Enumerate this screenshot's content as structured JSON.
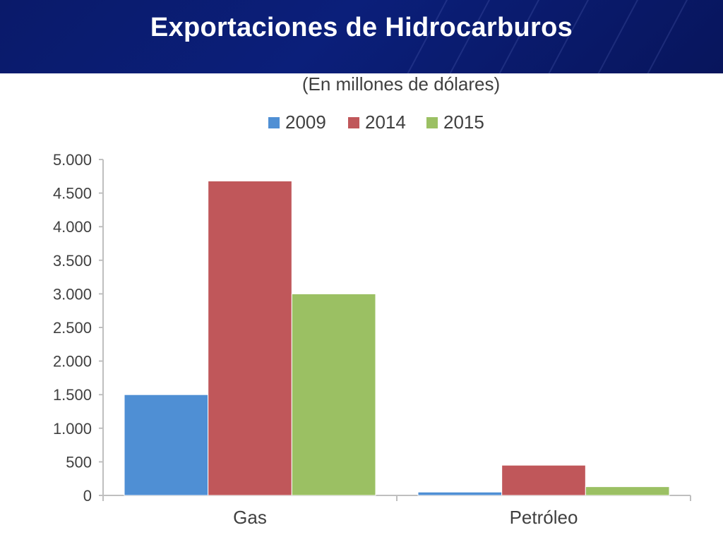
{
  "slide": {
    "title": "Exportaciones de Hidrocarburos"
  },
  "colors": {
    "title_band": "#0b1f7a",
    "axis": "#bfbfbf",
    "text": "#404040"
  },
  "chart_data": {
    "type": "bar",
    "title": "",
    "subtitle": "(En millones de dólares)",
    "xlabel": "",
    "ylabel": "",
    "categories": [
      "Gas",
      "Petróleo"
    ],
    "series": [
      {
        "name": "2009",
        "color": "#4f8fd4",
        "values": [
          1500,
          50
        ]
      },
      {
        "name": "2014",
        "color": "#c0575a",
        "values": [
          4680,
          450
        ]
      },
      {
        "name": "2015",
        "color": "#9bc063",
        "values": [
          3000,
          130
        ]
      }
    ],
    "ylim": [
      0,
      5000
    ],
    "yticks": [
      0,
      500,
      1000,
      1500,
      2000,
      2500,
      3000,
      3500,
      4000,
      4500,
      5000
    ],
    "ytick_labels": [
      "0",
      "500",
      "1.000",
      "1.500",
      "2.000",
      "2.500",
      "3.000",
      "3.500",
      "4.000",
      "4.500",
      "5.000"
    ],
    "grid": false,
    "legend_position": "top"
  }
}
